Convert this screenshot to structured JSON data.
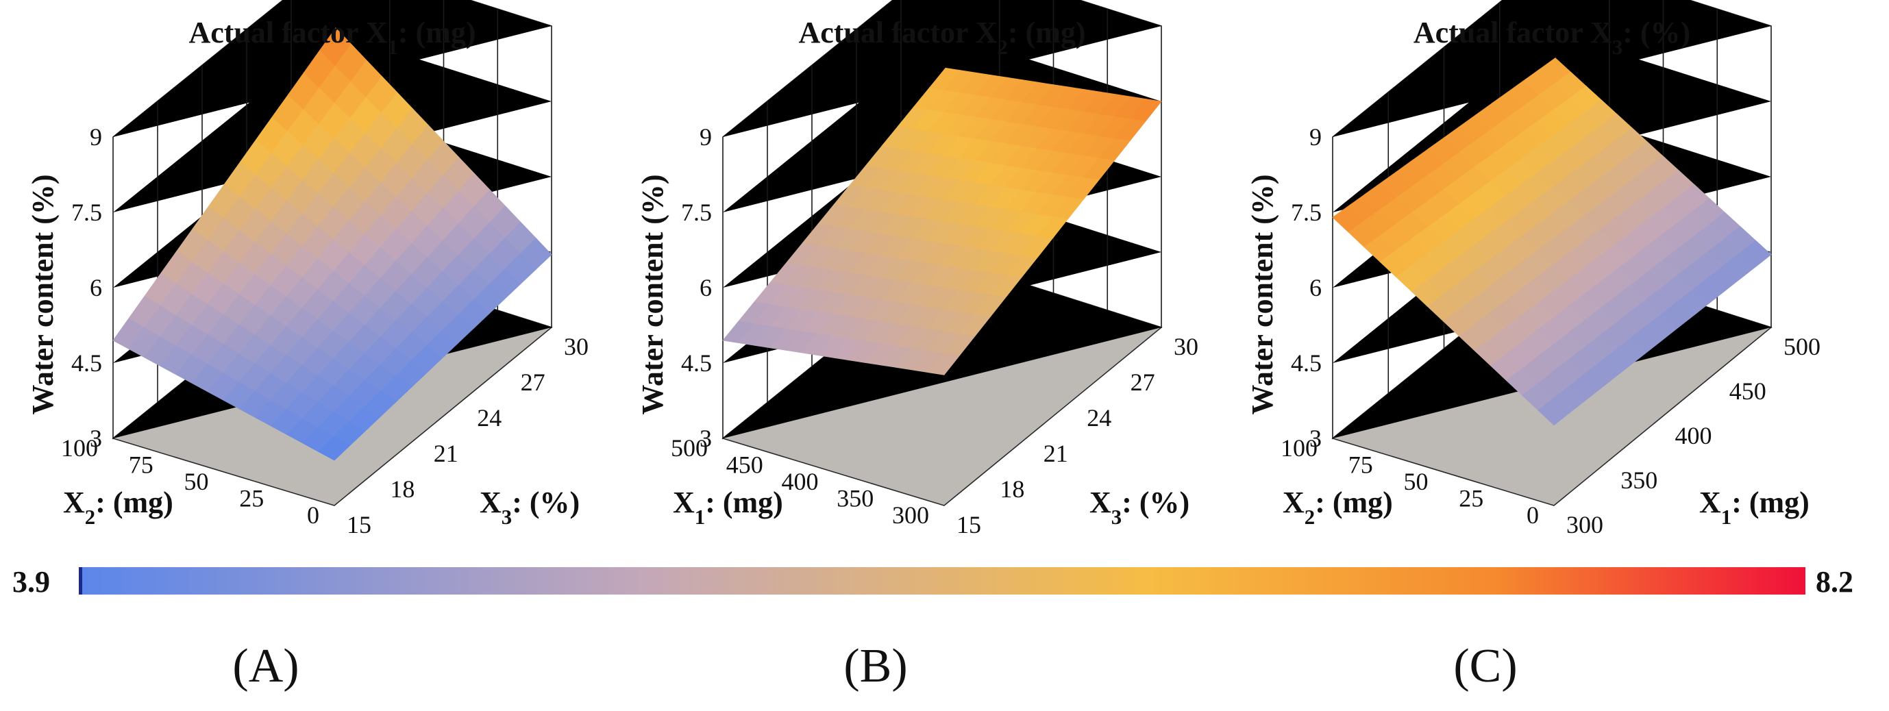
{
  "chart_data": [
    {
      "type": "surface3d",
      "panel": "(A)",
      "title": "Actual factor X1: (mg)",
      "title_parts": {
        "pre": "Actual factor X",
        "sub": "1",
        "post": ": (mg)"
      },
      "zlabel": "Water content (%)",
      "zticks": [
        "3",
        "4.5",
        "6",
        "7.5",
        "9"
      ],
      "zlim": [
        3,
        9
      ],
      "left_axis": {
        "label": {
          "pre": "X",
          "sub": "2",
          "post": ": (mg)"
        },
        "ticks": [
          "0",
          "25",
          "50",
          "75",
          "100"
        ],
        "range": [
          0,
          100
        ]
      },
      "right_axis": {
        "label": {
          "pre": "X",
          "sub": "3",
          "post": ": (%)"
        },
        "ticks": [
          "15",
          "18",
          "21",
          "24",
          "27",
          "30"
        ],
        "range": [
          15,
          30
        ]
      },
      "surface_corners": {
        "near": 3.9,
        "left": 4.95,
        "right": 4.45,
        "back": 7.6
      }
    },
    {
      "type": "surface3d",
      "panel": "(B)",
      "title": "Actual factor X2: (mg)",
      "title_parts": {
        "pre": "Actual factor X",
        "sub": "2",
        "post": ": (mg)"
      },
      "zlabel": "Water content (%)",
      "zticks": [
        "3",
        "4.5",
        "6",
        "7.5",
        "9"
      ],
      "zlim": [
        3,
        9
      ],
      "left_axis": {
        "label": {
          "pre": "X",
          "sub": "1",
          "post": ": (mg)"
        },
        "ticks": [
          "300",
          "350",
          "400",
          "450",
          "500"
        ],
        "range": [
          300,
          500
        ]
      },
      "right_axis": {
        "label": {
          "pre": "X",
          "sub": "3",
          "post": ": (%)"
        },
        "ticks": [
          "15",
          "18",
          "21",
          "24",
          "27",
          "30"
        ],
        "range": [
          15,
          30
        ]
      },
      "surface_corners": {
        "near": 5.6,
        "left": 4.95,
        "right": 7.5,
        "back": 6.8
      }
    },
    {
      "type": "surface3d",
      "panel": "(C)",
      "title": "Actual factor X3: (%)",
      "title_parts": {
        "pre": "Actual factor X",
        "sub": "3",
        "post": ": (%)"
      },
      "zlabel": "Water content (%)",
      "zticks": [
        "3",
        "4.5",
        "6",
        "7.5",
        "9"
      ],
      "zlim": [
        3,
        9
      ],
      "left_axis": {
        "label": {
          "pre": "X",
          "sub": "2",
          "post": ": (mg)"
        },
        "ticks": [
          "0",
          "25",
          "50",
          "75",
          "100"
        ],
        "range": [
          0,
          100
        ]
      },
      "right_axis": {
        "label": {
          "pre": "X",
          "sub": "1",
          "post": ": (mg)"
        },
        "ticks": [
          "300",
          "350",
          "400",
          "450",
          "500"
        ],
        "range": [
          300,
          500
        ]
      },
      "surface_corners": {
        "near": 4.6,
        "left": 7.4,
        "right": 4.45,
        "back": 7.0
      }
    }
  ],
  "colorbar": {
    "min_label": "3.9",
    "max_label": "8.2",
    "min": 3.9,
    "max": 8.2,
    "colors": [
      "#5b86ea",
      "#c4a8b8",
      "#f6bc44",
      "#f58a2e",
      "#f0103a"
    ]
  },
  "colors": {
    "floor": "#bdbab6",
    "grid": "#1a1a1a"
  }
}
